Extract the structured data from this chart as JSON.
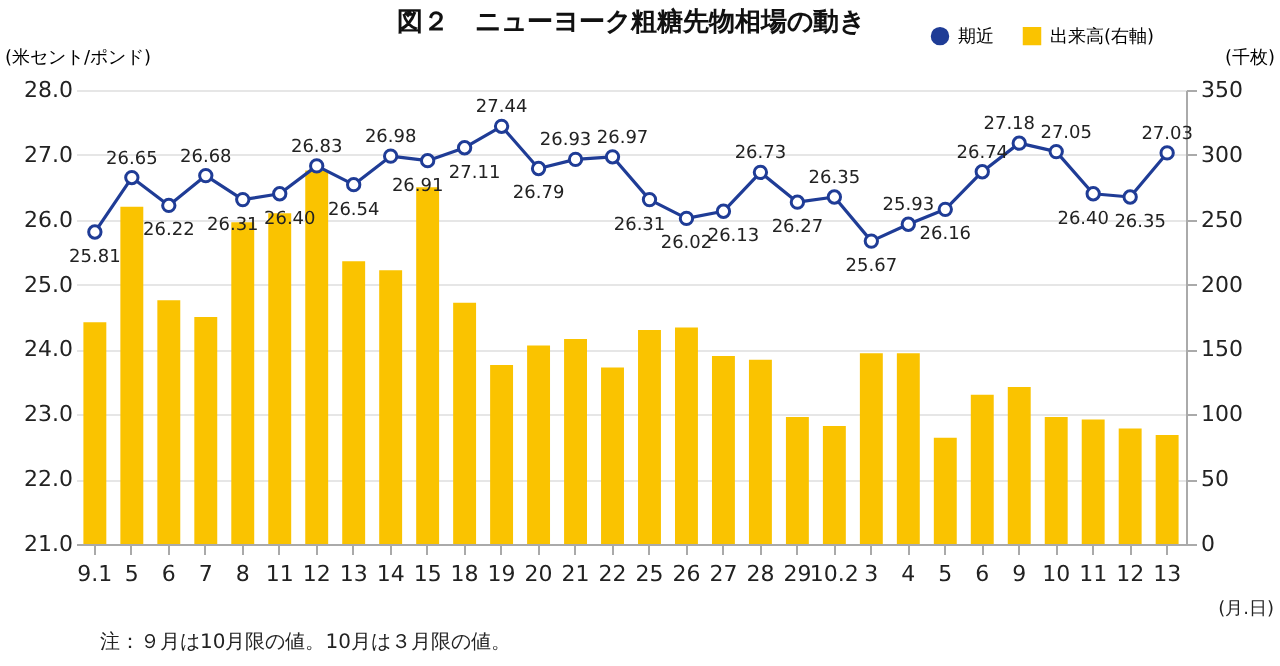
{
  "chart_data": {
    "type": "bar",
    "title": "図２　ニューヨーク粗糖先物相場の動き",
    "ylabel": "(米セント/ポンド)",
    "y2label": "(千枚)",
    "xlabel": "(月.日)",
    "annotations": [
      "注：９月は10月限の値。10月は３月限の値。"
    ],
    "categories": [
      "9.1",
      "5",
      "6",
      "7",
      "8",
      "11",
      "12",
      "13",
      "14",
      "15",
      "18",
      "19",
      "20",
      "21",
      "22",
      "25",
      "26",
      "27",
      "28",
      "29",
      "10.2",
      "3",
      "4",
      "5",
      "6",
      "9",
      "10",
      "11",
      "12",
      "13"
    ],
    "series": [
      {
        "name": "期近",
        "type": "line",
        "color": "#1f3c96",
        "values": [
          25.81,
          26.65,
          26.22,
          26.68,
          26.31,
          26.4,
          26.83,
          26.54,
          26.98,
          26.91,
          27.11,
          27.44,
          26.79,
          26.93,
          26.97,
          26.31,
          26.02,
          26.13,
          26.73,
          26.27,
          26.35,
          25.67,
          25.93,
          26.16,
          26.74,
          27.18,
          27.05,
          26.4,
          26.35,
          27.03
        ],
        "value_labels": [
          "25.81",
          "26.65",
          "26.22",
          "26.68",
          "26.31",
          "26.40",
          "26.83",
          "26.54",
          "26.98",
          "26.91",
          "27.11",
          "27.44",
          "26.79",
          "26.93",
          "26.97",
          "26.31",
          "26.02",
          "26.13",
          "26.73",
          "26.27",
          "26.35",
          "25.67",
          "25.93",
          "26.16",
          "26.74",
          "27.18",
          "27.05",
          "26.40",
          "26.35",
          "27.03"
        ]
      },
      {
        "name": "出来高(右軸)",
        "axis": "y2",
        "color": "#fac300",
        "values": [
          171,
          260,
          188,
          175,
          248,
          255,
          288,
          218,
          211,
          275,
          186,
          138,
          153,
          158,
          136,
          165,
          167,
          145,
          142,
          98,
          91,
          147,
          147,
          82,
          115,
          121,
          98,
          96,
          89,
          84
        ]
      }
    ],
    "ylim": [
      21,
      28
    ],
    "yticks": [
      {
        "value": 21,
        "label": "21.0"
      },
      {
        "value": 22,
        "label": "22.0"
      },
      {
        "value": 23,
        "label": "23.0"
      },
      {
        "value": 24,
        "label": "24.0"
      },
      {
        "value": 25,
        "label": "25.0"
      },
      {
        "value": 26,
        "label": "26.0"
      },
      {
        "value": 27,
        "label": "27.0"
      },
      {
        "value": 28,
        "label": "28.0"
      }
    ],
    "y2lim": [
      0,
      350
    ],
    "y2ticks": [
      0,
      50,
      100,
      150,
      200,
      250,
      300,
      350
    ],
    "grid": "y",
    "legend": "top right",
    "marker": "circle"
  }
}
